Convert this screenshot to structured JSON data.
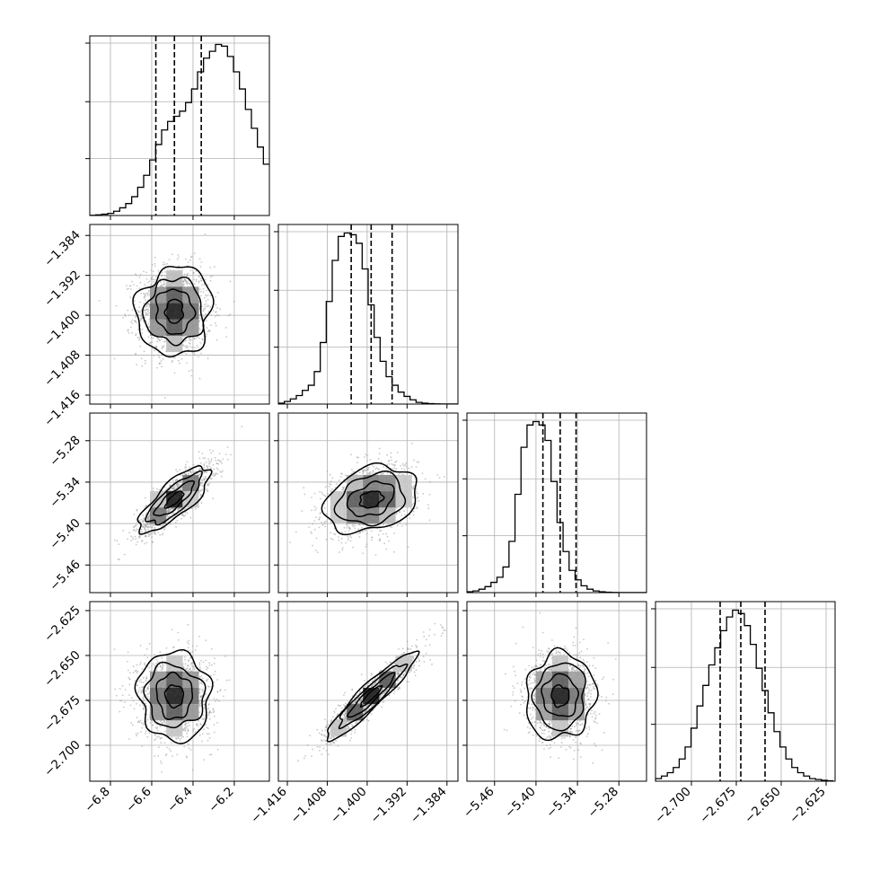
{
  "chart_data": {
    "type": "corner",
    "grid": true,
    "parameters": [
      {
        "index": 0,
        "range": [
          -6.9,
          -6.03
        ],
        "ticks": [
          -6.8,
          -6.6,
          -6.4,
          -6.2
        ],
        "tick_labels": [
          "−6.8",
          "−6.6",
          "−6.4",
          "−6.2"
        ],
        "quantiles": [
          -6.58,
          -6.49,
          -6.36
        ],
        "histogram": {
          "bin_start": -6.9,
          "bin_width": 0.029,
          "counts": [
            0.2,
            0.8,
            1.5,
            2.5,
            5,
            9,
            14,
            22,
            33,
            47,
            65,
            83,
            100,
            110,
            116,
            122,
            132,
            148,
            168,
            184,
            192,
            200,
            198,
            186,
            168,
            148,
            124,
            102,
            80,
            60
          ]
        },
        "histogram_peak_total": 210
      },
      {
        "index": 1,
        "range": [
          -1.4178,
          -1.3818
        ],
        "ticks": [
          -1.416,
          -1.408,
          -1.4,
          -1.392,
          -1.384
        ],
        "tick_labels": [
          "−1.416",
          "−1.408",
          "−1.400",
          "−1.392",
          "−1.384"
        ],
        "quantiles": [
          -1.4032,
          -1.3992,
          -1.395
        ],
        "histogram": {
          "bin_start": -1.4178,
          "bin_width": 0.0012,
          "counts": [
            1,
            3,
            6,
            10,
            16,
            22,
            38,
            72,
            120,
            168,
            196,
            200,
            198,
            188,
            158,
            116,
            78,
            50,
            32,
            22,
            14,
            9,
            5,
            2,
            1,
            0.5,
            0.2,
            0.1,
            0.1,
            0.1
          ]
        },
        "histogram_peak_total": 210
      },
      {
        "index": 2,
        "range": [
          -5.5,
          -5.24
        ],
        "ticks": [
          -5.46,
          -5.4,
          -5.34,
          -5.28
        ],
        "tick_labels": [
          "−5.46",
          "−5.40",
          "−5.34",
          "−5.28"
        ],
        "quantiles": [
          -5.39,
          -5.365,
          -5.342
        ],
        "histogram": {
          "bin_start": -5.5,
          "bin_width": 0.0087,
          "counts": [
            1,
            2,
            4,
            7,
            12,
            18,
            30,
            60,
            115,
            170,
            196,
            200,
            196,
            178,
            130,
            82,
            48,
            26,
            15,
            8,
            4,
            2,
            1,
            0.5,
            0.2,
            0.1,
            0.1,
            0.1,
            0.1,
            0.1
          ]
        },
        "histogram_peak_total": 210
      },
      {
        "index": 3,
        "range": [
          -2.72,
          -2.62
        ],
        "ticks": [
          -2.7,
          -2.675,
          -2.65,
          -2.625
        ],
        "tick_labels": [
          "−2.700",
          "−2.675",
          "−2.650",
          "−2.625"
        ],
        "quantiles": [
          -2.684,
          -2.6725,
          -2.659
        ],
        "histogram": {
          "bin_start": -2.72,
          "bin_width": 0.0033,
          "counts": [
            3,
            6,
            10,
            16,
            26,
            40,
            62,
            88,
            112,
            136,
            156,
            176,
            192,
            200,
            196,
            182,
            160,
            132,
            106,
            80,
            58,
            40,
            26,
            16,
            10,
            6,
            3,
            2,
            1,
            0.5
          ]
        },
        "histogram_peak_total": 210
      }
    ],
    "correlations": [
      {
        "pair": [
          1,
          0
        ],
        "rho": 0.0
      },
      {
        "pair": [
          2,
          0
        ],
        "rho": 0.82
      },
      {
        "pair": [
          2,
          1
        ],
        "rho": 0.3
      },
      {
        "pair": [
          3,
          0
        ],
        "rho": 0.0
      },
      {
        "pair": [
          3,
          1
        ],
        "rho": 0.93
      },
      {
        "pair": [
          3,
          2
        ],
        "rho": 0.0
      }
    ],
    "spreads": [
      0.09,
      0.0045,
      0.025,
      0.012
    ],
    "contour_levels_sigma": [
      0.5,
      1.0,
      1.5,
      2.0
    ],
    "scatter_color": "#9a9a9a",
    "line_color": "#000000",
    "grid_color": "#b0b0b0"
  }
}
